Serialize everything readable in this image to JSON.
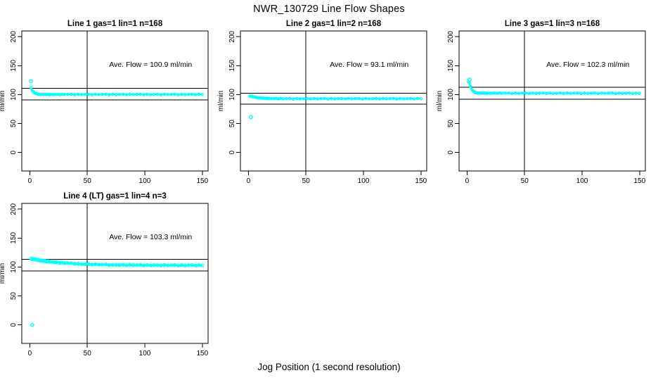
{
  "title": "NWR_130729  Line Flow Shapes",
  "xlabel": "Jog Position (1 second resolution)",
  "colors": {
    "points": "#00ffff",
    "axis": "#000000",
    "background": "#ffffff"
  },
  "chart_data": {
    "type": "scatter",
    "layout": {
      "grid": "off",
      "legend": "none",
      "marker": "open-circle"
    },
    "axes": {
      "xlim": [
        -7,
        155
      ],
      "ylim": [
        -32,
        210
      ],
      "xticks": [
        0,
        50,
        100,
        150
      ],
      "yticks": [
        0,
        50,
        100,
        150,
        200
      ],
      "ref_line_x": 50,
      "ylabel": "ml/min"
    },
    "x": [
      1,
      2,
      3,
      4,
      5,
      6,
      7,
      8,
      9,
      10,
      11,
      12,
      13,
      14,
      15,
      16,
      17,
      18,
      20,
      22,
      24,
      26,
      28,
      30,
      33,
      36,
      39,
      42,
      45,
      48,
      51,
      54,
      57,
      60,
      63,
      66,
      69,
      72,
      75,
      78,
      81,
      84,
      87,
      90,
      93,
      96,
      99,
      102,
      105,
      108,
      111,
      114,
      117,
      120,
      123,
      126,
      129,
      132,
      135,
      138,
      141,
      144,
      147,
      150
    ],
    "plots": [
      {
        "title": "Line 1 gas=1 lin=1 n=168",
        "annotation": "Ave. Flow =  100.9  ml/min",
        "ave_flow": 100.9,
        "ref_lines_y": [
          111.0,
          90.8
        ],
        "grid_pos": [
          0,
          0
        ],
        "marker_scale": 1,
        "y": [
          112.1,
          107.2,
          105.3,
          103.0,
          102.3,
          101.9,
          100.6,
          101.0,
          100.3,
          100.5,
          100.7,
          100.0,
          100.8,
          100.1,
          100.4,
          100.7,
          99.8,
          100.5,
          100.0,
          100.3,
          100.6,
          99.9,
          100.7,
          100.1,
          100.4,
          100.7,
          99.8,
          100.5,
          100.0,
          100.3,
          100.6,
          99.9,
          100.7,
          100.1,
          100.4,
          100.7,
          99.8,
          100.5,
          100.0,
          100.3,
          100.6,
          99.9,
          100.7,
          100.1,
          100.4,
          100.7,
          99.8,
          100.5,
          100.0,
          100.3,
          100.6,
          99.9,
          100.7,
          100.1,
          100.4,
          100.7,
          99.8,
          100.5,
          100.0,
          100.3,
          100.6,
          99.9,
          100.7,
          100.1
        ],
        "outliers": [
          [
            1,
            123
          ]
        ]
      },
      {
        "title": "Line 2 gas=1 lin=2 n=168",
        "annotation": "Ave. Flow =  93.1  ml/min",
        "ave_flow": 93.1,
        "ref_lines_y": [
          102.4,
          83.8
        ],
        "grid_pos": [
          0,
          1
        ],
        "marker_scale": 1,
        "y": [
          97.5,
          97.4,
          97.5,
          96.2,
          96.0,
          95.9,
          94.6,
          95.0,
          94.2,
          94.3,
          94.4,
          93.5,
          94.2,
          93.5,
          93.7,
          93.9,
          92.9,
          93.5,
          92.9,
          93.2,
          93.4,
          92.7,
          93.5,
          92.8,
          93.1,
          93.4,
          92.5,
          93.2,
          92.7,
          93.0,
          93.3,
          92.6,
          93.4,
          92.8,
          93.1,
          93.4,
          92.5,
          93.2,
          92.7,
          93.0,
          93.3,
          92.6,
          93.4,
          92.8,
          93.1,
          93.4,
          92.5,
          93.2,
          92.7,
          93.0,
          93.3,
          92.6,
          93.4,
          92.8,
          93.1,
          93.4,
          92.5,
          93.2,
          92.7,
          93.0,
          93.3,
          92.6,
          93.4,
          92.8
        ],
        "outliers": [
          [
            2,
            61
          ]
        ]
      },
      {
        "title": "Line 3 gas=1 lin=3 n=168",
        "annotation": "Ave. Flow =  102.3  ml/min",
        "ave_flow": 102.3,
        "ref_lines_y": [
          112.5,
          92.1
        ],
        "grid_pos": [
          0,
          2
        ],
        "marker_scale": 1,
        "y": [
          121.9,
          121.0,
          114.3,
          109.2,
          106.7,
          105.4,
          103.5,
          103.5,
          102.7,
          102.7,
          102.9,
          102.1,
          102.9,
          102.3,
          102.5,
          102.8,
          101.9,
          102.6,
          102.1,
          102.4,
          102.7,
          102.0,
          102.8,
          102.2,
          102.5,
          102.8,
          101.9,
          102.6,
          102.1,
          102.4,
          102.7,
          102.0,
          102.8,
          102.2,
          102.5,
          102.8,
          101.9,
          102.6,
          102.1,
          102.4,
          102.7,
          102.0,
          102.8,
          102.2,
          102.5,
          102.8,
          101.9,
          102.6,
          102.1,
          102.4,
          102.7,
          102.0,
          102.8,
          102.2,
          102.5,
          102.8,
          101.9,
          102.6,
          102.1,
          102.4,
          102.7,
          102.0,
          102.8,
          102.2
        ],
        "outliers": [
          [
            2,
            126
          ]
        ]
      },
      {
        "title": "Line 4 (LT) gas=1 lin=4 n=3",
        "annotation": "Ave. Flow =  103.3  ml/min",
        "ave_flow": 103.3,
        "ref_lines_y": [
          113.6,
          93.0
        ],
        "grid_pos": [
          1,
          0
        ],
        "marker_scale": 1.3,
        "y": [
          114.7,
          113.6,
          114.0,
          113.0,
          113.0,
          112.9,
          111.7,
          112.1,
          111.2,
          111.2,
          111.2,
          110.3,
          110.8,
          109.9,
          110.0,
          110.0,
          108.9,
          109.3,
          108.4,
          108.3,
          108.3,
          107.2,
          107.7,
          106.8,
          106.7,
          106.6,
          105.4,
          105.7,
          105.0,
          105.0,
          105.1,
          104.2,
          104.8,
          104.1,
          104.2,
          104.4,
          103.4,
          104.0,
          103.4,
          103.6,
          103.9,
          103.1,
          103.8,
          103.2,
          103.4,
          103.7,
          102.8,
          103.4,
          102.9,
          103.2,
          103.4,
          102.7,
          103.5,
          102.9,
          103.2,
          103.5,
          102.6,
          103.2,
          102.7,
          103.0,
          103.3,
          102.6,
          103.4,
          102.8
        ],
        "outliers": [
          [
            2,
            0
          ]
        ]
      }
    ]
  }
}
